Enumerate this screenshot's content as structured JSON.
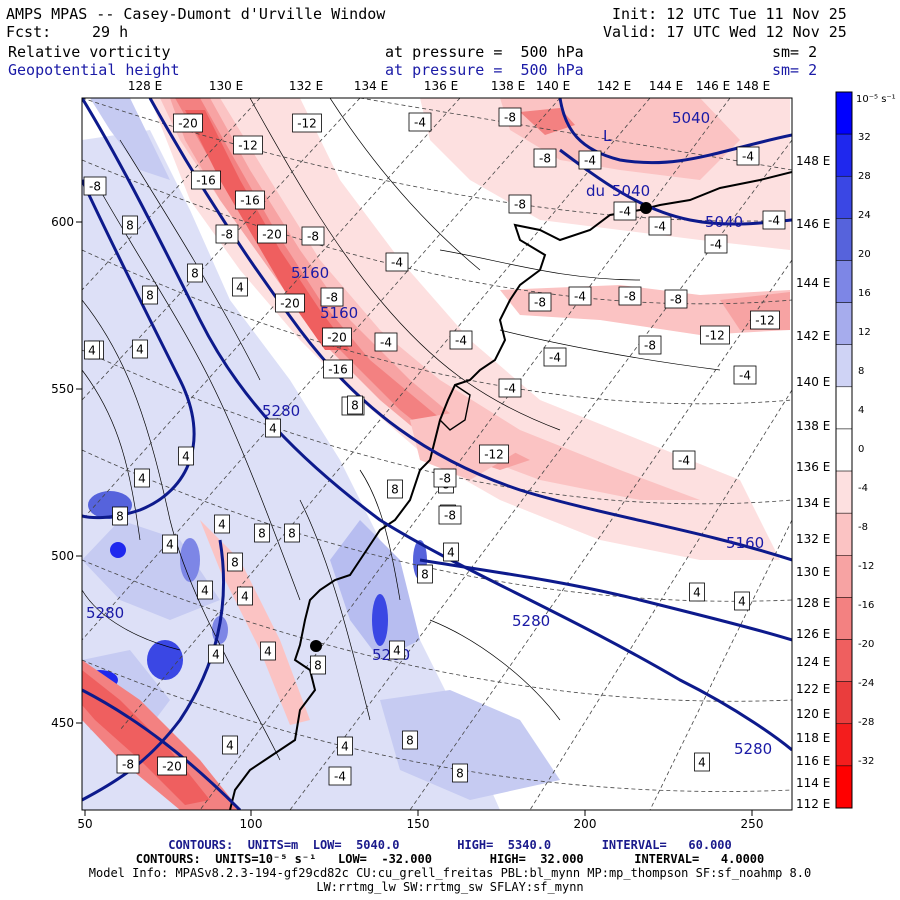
{
  "header": {
    "title": "AMPS MPAS -- Casey-Dumont d'Urville Window",
    "init": "Init: 12 UTC Tue 11 Nov 25",
    "fcst_label": "Fcst:",
    "fcst_value": "29 h",
    "valid": "Valid: 17 UTC Wed 12 Nov 25",
    "field1_name": "Relative vorticity",
    "field1_level": "at pressure =  500 hPa",
    "field1_sm": "sm= 2",
    "field2_name": "Geopotential height",
    "field2_level": "at pressure =  500 hPa",
    "field2_sm": "sm= 2"
  },
  "axes": {
    "top_labels": [
      "128 E",
      "130 E",
      "132 E",
      "134 E",
      "136 E",
      "138 E",
      "140 E",
      "142 E",
      "144 E",
      "146 E",
      "148 E"
    ],
    "right_labels": [
      "148 E",
      "146 E",
      "144 E",
      "142 E",
      "140 E",
      "138 E",
      "136 E",
      "134 E",
      "132 E",
      "130 E",
      "128 E",
      "126 E",
      "124 E",
      "122 E",
      "120 E",
      "118 E",
      "116 E",
      "114 E",
      "112 E"
    ],
    "bottom_labels": [
      "50",
      "100",
      "150",
      "200",
      "250"
    ],
    "left_labels": [
      "600",
      "550",
      "500",
      "450"
    ]
  },
  "colorbar": {
    "unit": "10⁻⁵ s⁻¹",
    "labels": [
      "32",
      "28",
      "24",
      "20",
      "16",
      "12",
      "8",
      "4",
      "0",
      "-4",
      "-8",
      "-12",
      "-16",
      "-20",
      "-24",
      "-28",
      "-32"
    ],
    "colors": [
      "#0000ff",
      "#1f28ee",
      "#3a47e4",
      "#5663dc",
      "#7d86e6",
      "#a6aced",
      "#cfd3f5",
      "#ffffff",
      "#ffffff",
      "#fde0e0",
      "#fbc3c3",
      "#f7a3a3",
      "#f38181",
      "#ef5f5f",
      "#ea3d3d",
      "#f41d1d",
      "#ff0000"
    ]
  },
  "map": {
    "height_labels": [
      "5040",
      "5040",
      "5040",
      "5160",
      "5160",
      "5160",
      "5280",
      "5280",
      "5280",
      "5280",
      "5280"
    ],
    "pressure_extreme": "L",
    "station_label": "du"
  },
  "vorticity_labels": [
    "-20",
    "-12",
    "-12",
    "-16",
    "-16",
    "-20",
    "-8",
    "-20",
    "-8",
    "-20",
    "-8",
    "-16",
    "-8",
    "-12",
    "-4",
    "-4",
    "-8",
    "-8",
    "-8",
    "-8",
    "-4",
    "-4",
    "-8",
    "-8",
    "-8",
    "-12",
    "-12",
    "-4",
    "-4",
    "-4",
    "-4",
    "-4",
    "-4",
    "-4",
    "-4",
    "-4",
    "-8",
    "8",
    "8",
    "8",
    "8",
    "4",
    "4",
    "4",
    "4",
    "4",
    "4",
    "8",
    "8",
    "8",
    "8",
    "8",
    "4",
    "4",
    "4",
    "4",
    "4",
    "4",
    "8",
    "8",
    "4",
    "8",
    "8",
    "8",
    "4",
    "4",
    "4",
    "4",
    "8",
    "-8",
    "-20",
    "4",
    "-4",
    "-8",
    "-8",
    "4",
    "4",
    "-4",
    "-4",
    "-4"
  ],
  "footer": {
    "line1": "CONTOURS:  UNITS=m  LOW=  5040.0        HIGH=  5340.0       INTERVAL=   60.000",
    "line2": "CONTOURS:  UNITS=10⁻⁵ s⁻¹   LOW=  -32.000        HIGH=  32.000       INTERVAL=   4.0000",
    "line3": "Model Info: MPASv8.2.3-194-gf29cd82c CU:cu_grell_freitas PBL:bl_mynn MP:mp_thompson SF:sf_noahmp 8.0",
    "line4": "LW:rrtmg_lw SW:rrtmg_sw SFLAY:sf_mynn"
  }
}
